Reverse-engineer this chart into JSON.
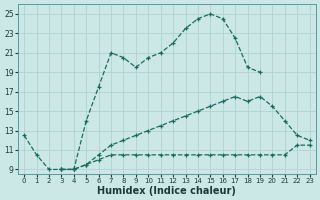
{
  "xlabel": "Humidex (Indice chaleur)",
  "bg_color": "#cce8e6",
  "line_color": "#1a6b5e",
  "grid_color": "#aacfcc",
  "xlim": [
    -0.5,
    23.5
  ],
  "ylim": [
    8.5,
    26.0
  ],
  "xticks": [
    0,
    1,
    2,
    3,
    4,
    5,
    6,
    7,
    8,
    9,
    10,
    11,
    12,
    13,
    14,
    15,
    16,
    17,
    18,
    19,
    20,
    21,
    22,
    23
  ],
  "yticks": [
    9,
    11,
    13,
    15,
    17,
    19,
    21,
    23,
    25
  ],
  "line1_x": [
    0,
    1,
    2,
    3,
    4,
    5,
    6,
    7,
    8,
    9,
    10,
    11,
    12,
    13,
    14,
    15,
    16,
    17,
    18,
    19
  ],
  "line1_y": [
    12.5,
    10.5,
    9.0,
    9.0,
    9.0,
    14.0,
    17.5,
    21.0,
    20.5,
    19.5,
    20.5,
    21.0,
    22.0,
    23.5,
    24.5,
    25.0,
    24.5,
    22.5,
    19.5,
    19.0
  ],
  "line2_x": [
    3,
    4,
    5,
    6,
    7,
    8,
    9,
    10,
    11,
    12,
    13,
    14,
    15,
    16,
    17,
    18,
    19,
    20,
    21,
    22,
    23
  ],
  "line2_y": [
    9.0,
    9.0,
    9.5,
    10.5,
    11.5,
    12.0,
    12.5,
    13.0,
    13.5,
    14.0,
    14.5,
    15.0,
    15.5,
    16.0,
    16.5,
    16.0,
    16.5,
    15.5,
    14.0,
    12.5,
    12.0
  ],
  "line3_x": [
    3,
    4,
    5,
    6,
    7,
    8,
    9,
    10,
    11,
    12,
    13,
    14,
    15,
    16,
    17,
    18,
    19,
    20,
    21,
    22,
    23
  ],
  "line3_y": [
    9.0,
    9.0,
    9.5,
    10.0,
    10.5,
    10.5,
    10.5,
    10.5,
    10.5,
    10.5,
    10.5,
    10.5,
    10.5,
    10.5,
    10.5,
    10.5,
    10.5,
    10.5,
    10.5,
    11.5,
    11.5
  ]
}
